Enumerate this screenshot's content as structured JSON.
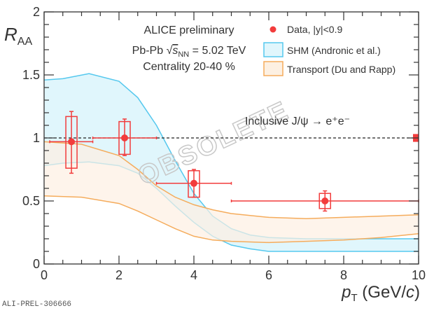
{
  "chart_data": {
    "type": "scatter",
    "xlabel_main": "p",
    "xlabel_sub": "T",
    "xlabel_unit": " (GeV/",
    "xlabel_c": "c",
    "xlabel_close": ")",
    "ylabel_main": "R",
    "ylabel_sub": "AA",
    "xlim": [
      0,
      10
    ],
    "ylim": [
      0,
      2
    ],
    "x_ticks": [
      "0",
      "2",
      "4",
      "6",
      "8",
      "10"
    ],
    "y_ticks": [
      "0",
      "0.5",
      "1",
      "1.5",
      "2"
    ],
    "reference_line": 1,
    "global_uncertainty": [
      0.98,
      1.02
    ],
    "texts": {
      "collab": "ALICE preliminary",
      "system_a": "Pb-Pb ",
      "system_s": "s",
      "system_nn": "NN",
      "system_b": " = 5.02 TeV",
      "centrality": "Centrality 20-40 %",
      "process": "Inclusive J/ψ → e⁺e⁻",
      "watermark": "OBSOLETE",
      "figure_id": "ALI-PREL-306666"
    },
    "legend": {
      "placement": "top-right",
      "data": "Data, |y|<0.9",
      "shm": "SHM (Andronic et al.)",
      "transport": "Transport (Du and Rapp)"
    },
    "colors": {
      "data": "#f23c3c",
      "shm_line": "#55c8ee",
      "shm_fill": "#e0f6fc",
      "tr_line": "#f5ac5c",
      "tr_fill": "#fdf0e2"
    },
    "series": [
      {
        "name": "Data, |y|<0.9",
        "points": [
          {
            "x": 0.73,
            "y": 0.97,
            "xlo": 0.15,
            "xhi": 1.3,
            "stat": [
              0.72,
              1.21
            ],
            "sys": [
              0.76,
              1.17
            ]
          },
          {
            "x": 2.15,
            "y": 1.0,
            "xlo": 1.3,
            "xhi": 3.0,
            "stat": [
              0.86,
              1.15
            ],
            "sys": [
              0.87,
              1.13
            ]
          },
          {
            "x": 4.0,
            "y": 0.64,
            "xlo": 3.0,
            "xhi": 5.0,
            "stat": [
              0.53,
              0.75
            ],
            "sys": [
              0.53,
              0.74
            ]
          },
          {
            "x": 7.5,
            "y": 0.5,
            "xlo": 5.0,
            "xhi": 10.0,
            "stat": [
              0.42,
              0.58
            ],
            "sys": [
              0.44,
              0.56
            ]
          }
        ]
      },
      {
        "name": "SHM (Andronic et al.)",
        "x": [
          0,
          0.5,
          1.2,
          2,
          2.5,
          3,
          3.5,
          4,
          4.5,
          5,
          5.5,
          6,
          7,
          8,
          10
        ],
        "upper": [
          1.46,
          1.47,
          1.51,
          1.45,
          1.32,
          1.1,
          0.82,
          0.56,
          0.38,
          0.28,
          0.23,
          0.21,
          0.2,
          0.2,
          0.2
        ],
        "lower": [
          0.78,
          0.8,
          0.81,
          0.78,
          0.72,
          0.6,
          0.46,
          0.33,
          0.22,
          0.15,
          0.12,
          0.1,
          0.1,
          0.1,
          0.1
        ]
      },
      {
        "name": "Transport (Du and Rapp)",
        "x": [
          0,
          1,
          2,
          2.5,
          3,
          3.5,
          4,
          4.5,
          5,
          6,
          7,
          8,
          9,
          10
        ],
        "upper": [
          0.97,
          0.95,
          0.86,
          0.75,
          0.62,
          0.53,
          0.47,
          0.43,
          0.4,
          0.37,
          0.36,
          0.37,
          0.38,
          0.39
        ],
        "lower": [
          0.54,
          0.53,
          0.48,
          0.42,
          0.35,
          0.28,
          0.22,
          0.19,
          0.18,
          0.17,
          0.18,
          0.19,
          0.21,
          0.24
        ]
      }
    ]
  }
}
